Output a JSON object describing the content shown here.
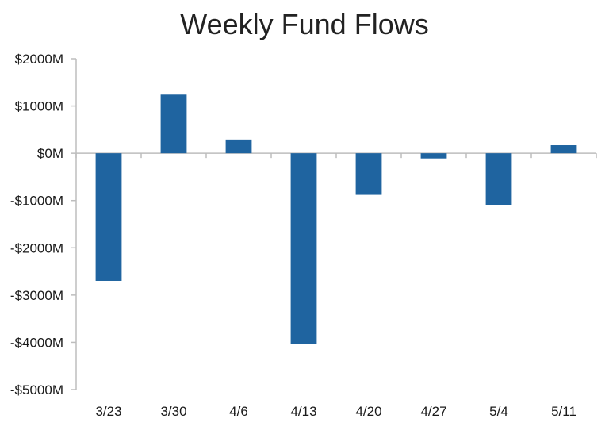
{
  "chart_data": {
    "type": "bar",
    "title": "Weekly Fund Flows",
    "xlabel": "",
    "ylabel": "",
    "categories": [
      "3/23",
      "3/30",
      "4/6",
      "4/13",
      "4/20",
      "4/27",
      "5/4",
      "5/11"
    ],
    "values": [
      -2700,
      1240,
      290,
      -4030,
      -880,
      -110,
      -1100,
      170
    ],
    "ylim": [
      -5000,
      2000
    ],
    "y_ticks": [
      2000,
      1000,
      0,
      -1000,
      -2000,
      -3000,
      -4000,
      -5000
    ],
    "y_tick_labels": [
      "$2000M",
      "$1000M",
      "$0M",
      "-$1000M",
      "-$2000M",
      "-$3000M",
      "-$4000M",
      "-$5000M"
    ],
    "bar_color": "#1f64a0",
    "axis_color": "#bdbdbd",
    "grid": false,
    "legend": "none"
  }
}
